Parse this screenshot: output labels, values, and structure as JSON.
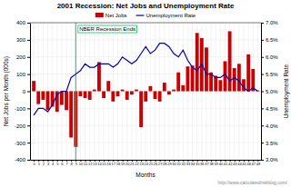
{
  "chart_data": {
    "type": "bar",
    "title": "2001 Recession: Net Jobs and Unemployment Rate",
    "xlabel": "Months",
    "ylabel": "Net Jobs per Month (000s)",
    "y2label": "Unemployment Rate",
    "x": [
      0,
      1,
      2,
      3,
      4,
      5,
      6,
      7,
      8,
      9,
      10,
      11,
      12,
      13,
      14,
      15,
      16,
      17,
      18,
      19,
      20,
      21,
      22,
      23,
      24,
      25,
      26,
      27,
      28,
      29,
      30,
      31,
      32,
      33,
      34,
      35,
      36,
      37,
      38,
      39,
      40,
      41,
      42,
      43,
      44,
      45,
      46,
      47,
      48
    ],
    "series": [
      {
        "name": "Net Jobs",
        "type": "bar",
        "color": "#cc0000",
        "values": [
          60,
          -75,
          -50,
          -110,
          -90,
          -120,
          -80,
          -110,
          -270,
          -325,
          -30,
          -40,
          -50,
          10,
          170,
          -40,
          60,
          -60,
          -30,
          10,
          -50,
          -20,
          10,
          -210,
          -60,
          30,
          -45,
          -60,
          50,
          -20,
          10,
          110,
          35,
          145,
          150,
          340,
          310,
          255,
          110,
          90,
          65,
          175,
          350,
          135,
          160,
          70,
          215,
          130,
          5
        ]
      },
      {
        "name": "Unemployment Rate",
        "type": "line",
        "color": "#0000bb",
        "axis": "y2",
        "values": [
          4.3,
          4.5,
          4.5,
          4.4,
          4.6,
          4.9,
          5.0,
          5.0,
          5.4,
          5.5,
          5.6,
          5.8,
          5.7,
          5.7,
          5.8,
          5.8,
          5.8,
          5.7,
          5.8,
          6.0,
          5.9,
          5.8,
          5.9,
          6.1,
          6.3,
          6.1,
          6.2,
          6.4,
          6.4,
          6.3,
          6.1,
          6.0,
          6.2,
          5.9,
          5.7,
          5.6,
          5.8,
          5.5,
          5.5,
          5.4,
          5.4,
          5.5,
          5.3,
          5.4,
          5.3,
          5.1,
          5.0,
          5.1,
          5.0
        ]
      }
    ],
    "xlim": [
      -0.8,
      48.7
    ],
    "xticks": [
      0,
      1,
      2,
      3,
      4,
      5,
      6,
      7,
      8,
      9,
      10,
      11,
      12,
      13,
      14,
      15,
      16,
      17,
      18,
      19,
      20,
      21,
      22,
      23,
      24,
      25,
      26,
      27,
      28,
      29,
      30,
      31,
      32,
      33,
      34,
      35,
      36,
      37,
      38,
      39,
      40,
      41,
      42,
      43,
      44,
      45,
      46,
      47,
      48
    ],
    "ylim": [
      -400,
      400
    ],
    "yticks": [
      -400,
      -300,
      -200,
      -100,
      0,
      100,
      200,
      300,
      400
    ],
    "y2lim": [
      3.0,
      7.0
    ],
    "y2ticks": [
      {
        "value": 3.0,
        "label": "3.0%"
      },
      {
        "value": 3.5,
        "label": "3.5%"
      },
      {
        "value": 4.0,
        "label": "4.0%"
      },
      {
        "value": 4.5,
        "label": "4.5%"
      },
      {
        "value": 5.0,
        "label": "5.0%"
      },
      {
        "value": 5.5,
        "label": "5.5%"
      },
      {
        "value": 6.0,
        "label": "6.0%"
      },
      {
        "value": 6.5,
        "label": "6.5%"
      },
      {
        "value": 7.0,
        "label": "7.0%"
      }
    ],
    "annotations": [
      {
        "text": "NBER Recession Ends",
        "x": 9,
        "color": "#00cc55"
      },
      {
        "text": "http://www.calculatedriskblog.com/"
      }
    ],
    "grid": true,
    "legend": "top"
  }
}
